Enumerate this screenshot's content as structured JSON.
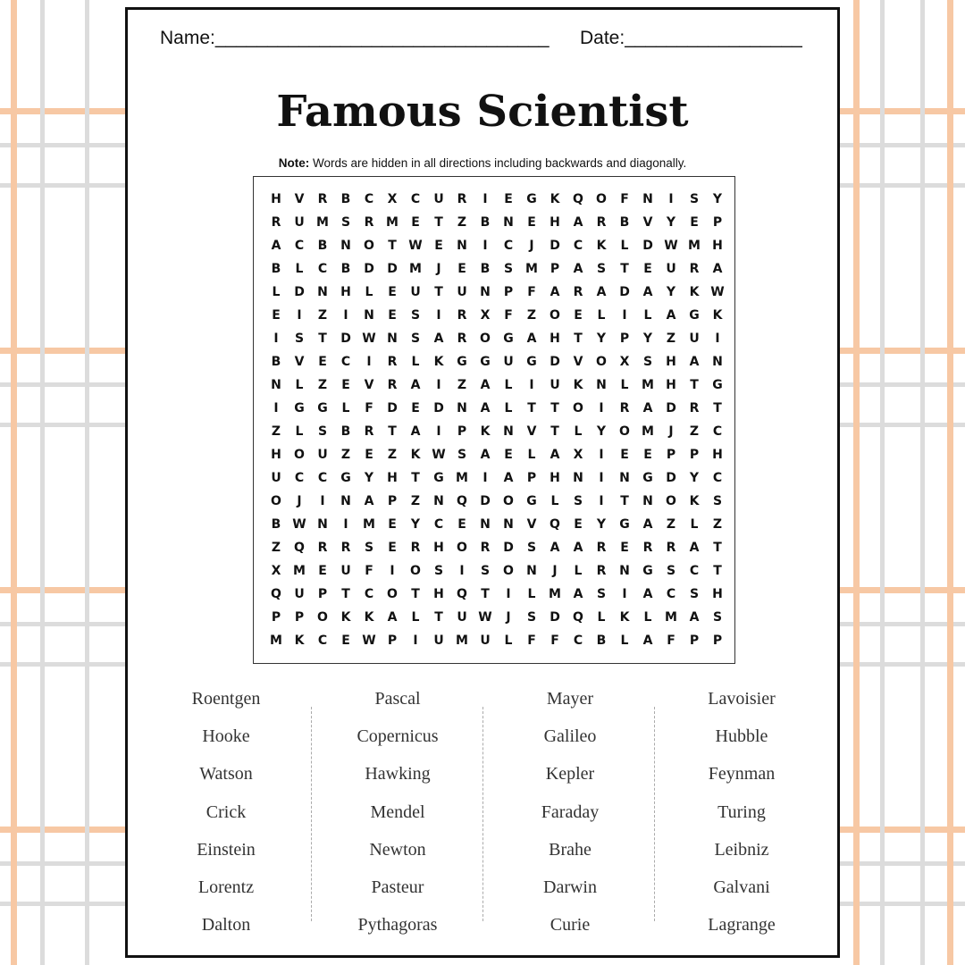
{
  "header": {
    "name_label": "Name:",
    "name_line": "________________________________",
    "date_label": "Date:",
    "date_line": "_________________"
  },
  "title": "Famous Scientist",
  "note": {
    "bold": "Note:",
    "text": " Words are hidden in all directions including backwards and diagonally."
  },
  "grid": [
    "HVRBCXCURIEGKQOFNISY",
    "RUMSRMETZBNEHARBVYEP",
    "ACBNOTWENICJDCKLDWMH",
    "BLCBDDMJEBSMPASTEURA",
    "LDNHLEUTUNPFARADAYKW",
    "EIZINESIRXFZOELILAGK",
    "ISTDWNSAROGAHTYPYZUI",
    "BVECIRLKGGUGDVOXSHAN",
    "NLZEVRAIZALIUKNLMHTG",
    "IGGLFDEDNALTTOIRADRT",
    "ZLSBRTAIPKNVTLYOMJZC",
    "HOUZEZKWSAELAXIEEPPH",
    "UCCGYHTGMIAPHNINGDYC",
    "OJINAPZNQDOGLSITNOKS",
    "BWNIMEYCENNVQEYGAZLZ",
    "ZQRRSERHORDSAARERRAT",
    "XMEUFIOSISONJLRNGSCT",
    "QUPTCOTHQTILMASIACSH",
    "PPOKKALTUWJSDQLKLMAS",
    "MKCEWPIUMULFFCBLAFPP"
  ],
  "words": [
    [
      "Roentgen",
      "Hooke",
      "Watson",
      "Crick",
      "Einstein",
      "Lorentz",
      "Dalton"
    ],
    [
      "Pascal",
      "Copernicus",
      "Hawking",
      "Mendel",
      "Newton",
      "Pasteur",
      "Pythagoras"
    ],
    [
      "Mayer",
      "Galileo",
      "Kepler",
      "Faraday",
      "Brahe",
      "Darwin",
      "Curie"
    ],
    [
      "Lavoisier",
      "Hubble",
      "Feynman",
      "Turing",
      "Leibniz",
      "Galvani",
      "Lagrange"
    ]
  ]
}
